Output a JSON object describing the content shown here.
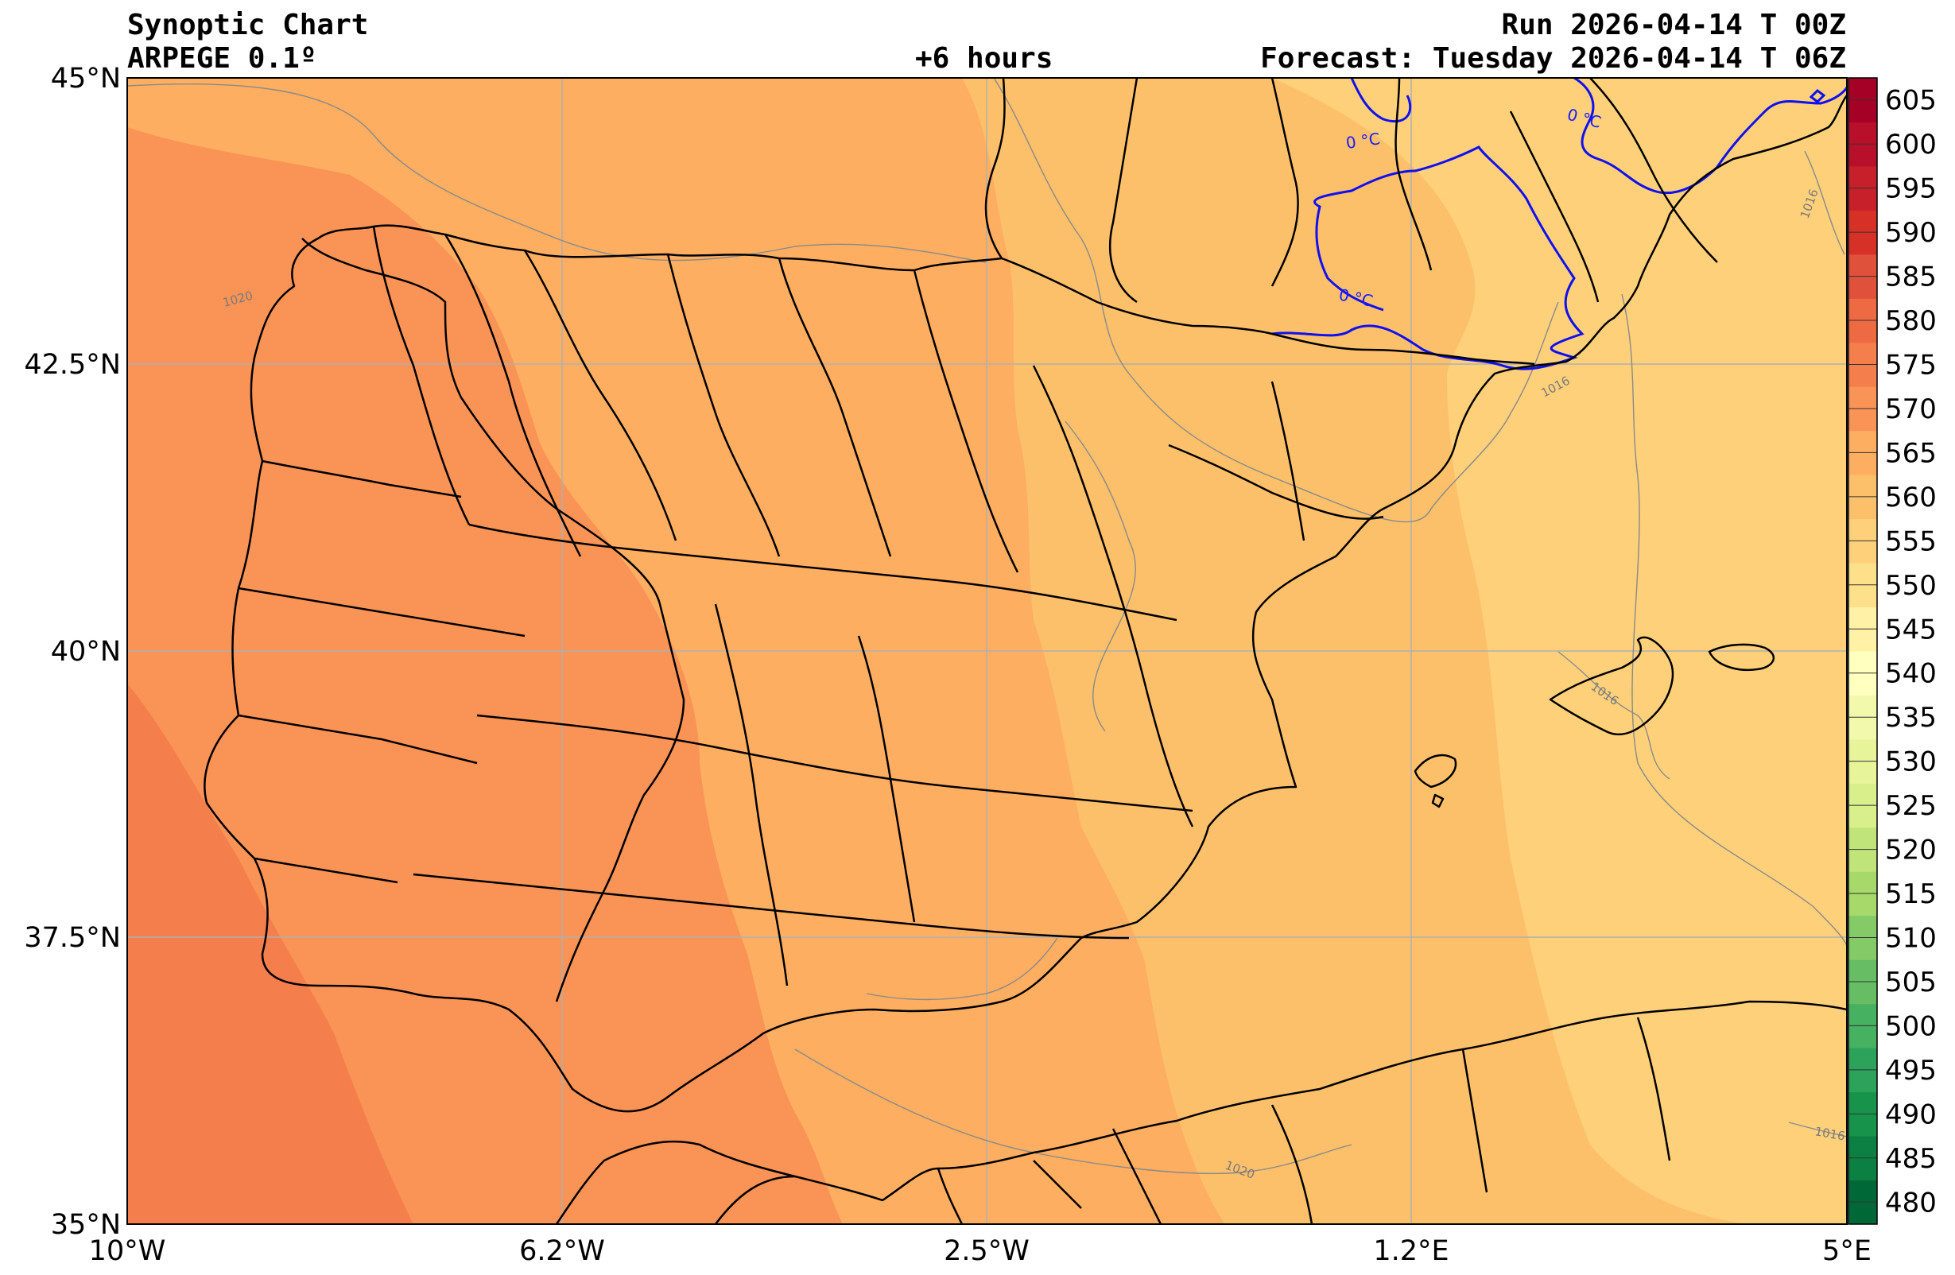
{
  "header": {
    "title": "Synoptic Chart",
    "model": "ARPEGE 0.1º",
    "lead": "+6 hours",
    "run": "Run 2026-04-14 T 00Z",
    "forecast": "Forecast: Tuesday 2026-04-14 T 06Z"
  },
  "map": {
    "lon_range": [
      -10,
      5
    ],
    "lat_range": [
      35,
      45
    ],
    "lon_ticks": [
      {
        "value": -10,
        "label": "10°W"
      },
      {
        "value": -6.2,
        "label": "6.2°W"
      },
      {
        "value": -2.5,
        "label": "2.5°W"
      },
      {
        "value": 1.2,
        "label": "1.2°E"
      },
      {
        "value": 5,
        "label": "5°E"
      }
    ],
    "lat_ticks": [
      {
        "value": 45,
        "label": "45°N"
      },
      {
        "value": 42.5,
        "label": "42.5°N"
      },
      {
        "value": 40,
        "label": "40°N"
      },
      {
        "value": 37.5,
        "label": "37.5°N"
      },
      {
        "value": 35,
        "label": "35°N"
      }
    ],
    "grid": true,
    "isobar_labels": [
      "1020",
      "1016",
      "1016",
      "1020",
      "1016",
      "1016"
    ],
    "freezing_labels": [
      "0 °C",
      "0 °C",
      "0 °C"
    ]
  },
  "colorbar": {
    "levels": [
      480,
      485,
      490,
      495,
      500,
      505,
      510,
      515,
      520,
      525,
      530,
      535,
      540,
      545,
      550,
      555,
      560,
      565,
      570,
      575,
      580,
      585,
      590,
      595,
      600,
      605
    ],
    "colors": [
      "#006837",
      "#0c7f42",
      "#17934c",
      "#2ca25a",
      "#45b161",
      "#66bd63",
      "#84ca66",
      "#a6d96a",
      "#c0e47a",
      "#d9ef8b",
      "#e7f49a",
      "#f2f9ac",
      "#ffffbf",
      "#fff2a6",
      "#fee08b",
      "#fed07a",
      "#fdc06a",
      "#fdae61",
      "#f99356",
      "#f57e4d",
      "#ee6a43",
      "#e0513c",
      "#d73027",
      "#c8202a",
      "#b8102b",
      "#a50026"
    ]
  }
}
